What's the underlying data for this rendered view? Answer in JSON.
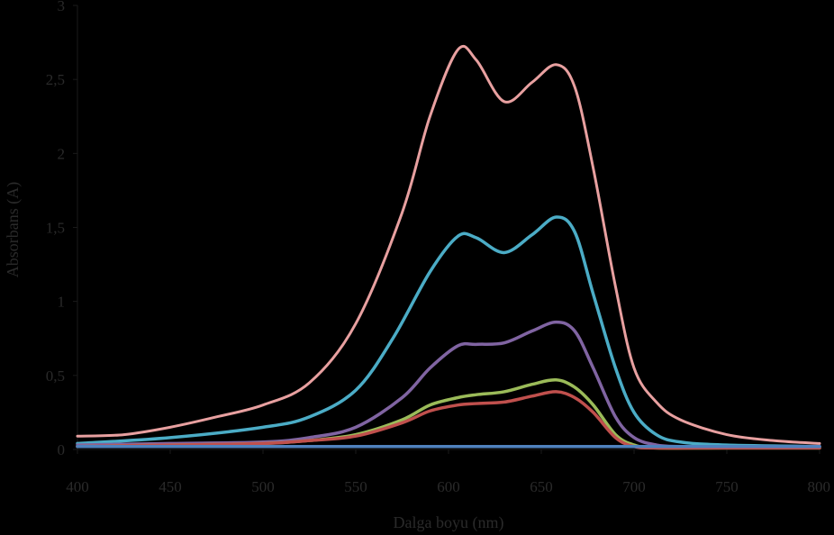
{
  "chart_data": {
    "type": "line",
    "title": "",
    "xlabel": "Dalga boyu (nm)",
    "ylabel": "Absorbans (A)",
    "xlim": [
      400,
      800
    ],
    "ylim": [
      0,
      3
    ],
    "x_ticks": [
      "400",
      "450",
      "500",
      "550",
      "600",
      "650",
      "700",
      "750",
      "800"
    ],
    "y_ticks": [
      "0",
      "0,5",
      "1",
      "1,5",
      "2",
      "2,5",
      "3"
    ],
    "grid": false,
    "legend": "none",
    "series": [
      {
        "color": "#e8a0a0",
        "x": [
          400,
          425,
          450,
          475,
          500,
          525,
          550,
          575,
          590,
          605,
          615,
          630,
          645,
          658,
          668,
          678,
          690,
          700,
          712,
          725,
          750,
          775,
          800
        ],
        "y": [
          0.09,
          0.1,
          0.15,
          0.22,
          0.3,
          0.45,
          0.85,
          1.6,
          2.25,
          2.7,
          2.63,
          2.35,
          2.48,
          2.6,
          2.45,
          1.9,
          1.1,
          0.55,
          0.32,
          0.2,
          0.1,
          0.06,
          0.04
        ]
      },
      {
        "color": "#4bacc6",
        "x": [
          400,
          450,
          500,
          525,
          550,
          570,
          590,
          605,
          615,
          630,
          645,
          658,
          668,
          678,
          690,
          700,
          712,
          725,
          750,
          800
        ],
        "y": [
          0.04,
          0.08,
          0.15,
          0.22,
          0.4,
          0.75,
          1.2,
          1.44,
          1.43,
          1.33,
          1.45,
          1.57,
          1.47,
          1.05,
          0.55,
          0.25,
          0.1,
          0.05,
          0.03,
          0.02
        ]
      },
      {
        "color": "#8064a2",
        "x": [
          400,
          450,
          500,
          525,
          550,
          575,
          590,
          605,
          615,
          630,
          645,
          658,
          668,
          678,
          690,
          700,
          712,
          725,
          750,
          800
        ],
        "y": [
          0.03,
          0.04,
          0.05,
          0.08,
          0.15,
          0.35,
          0.55,
          0.7,
          0.71,
          0.72,
          0.8,
          0.86,
          0.8,
          0.55,
          0.22,
          0.08,
          0.03,
          0.02,
          0.02,
          0.02
        ]
      },
      {
        "color": "#9bbb59",
        "x": [
          400,
          450,
          500,
          525,
          550,
          575,
          590,
          605,
          615,
          630,
          645,
          658,
          668,
          678,
          690,
          700,
          712,
          750,
          800
        ],
        "y": [
          0.02,
          0.03,
          0.04,
          0.06,
          0.1,
          0.2,
          0.3,
          0.35,
          0.37,
          0.39,
          0.44,
          0.47,
          0.42,
          0.3,
          0.1,
          0.03,
          0.01,
          0.01,
          0.01
        ]
      },
      {
        "color": "#c0504d",
        "x": [
          400,
          450,
          500,
          525,
          550,
          575,
          590,
          605,
          615,
          630,
          645,
          658,
          668,
          678,
          690,
          700,
          712,
          750,
          800
        ],
        "y": [
          0.02,
          0.03,
          0.04,
          0.06,
          0.09,
          0.18,
          0.26,
          0.3,
          0.31,
          0.32,
          0.36,
          0.39,
          0.35,
          0.25,
          0.08,
          0.02,
          0.01,
          0.01,
          0.01
        ]
      },
      {
        "color": "#4f81bd",
        "x": [
          400,
          500,
          600,
          700,
          800
        ],
        "y": [
          0.02,
          0.02,
          0.02,
          0.02,
          0.02
        ]
      }
    ]
  }
}
